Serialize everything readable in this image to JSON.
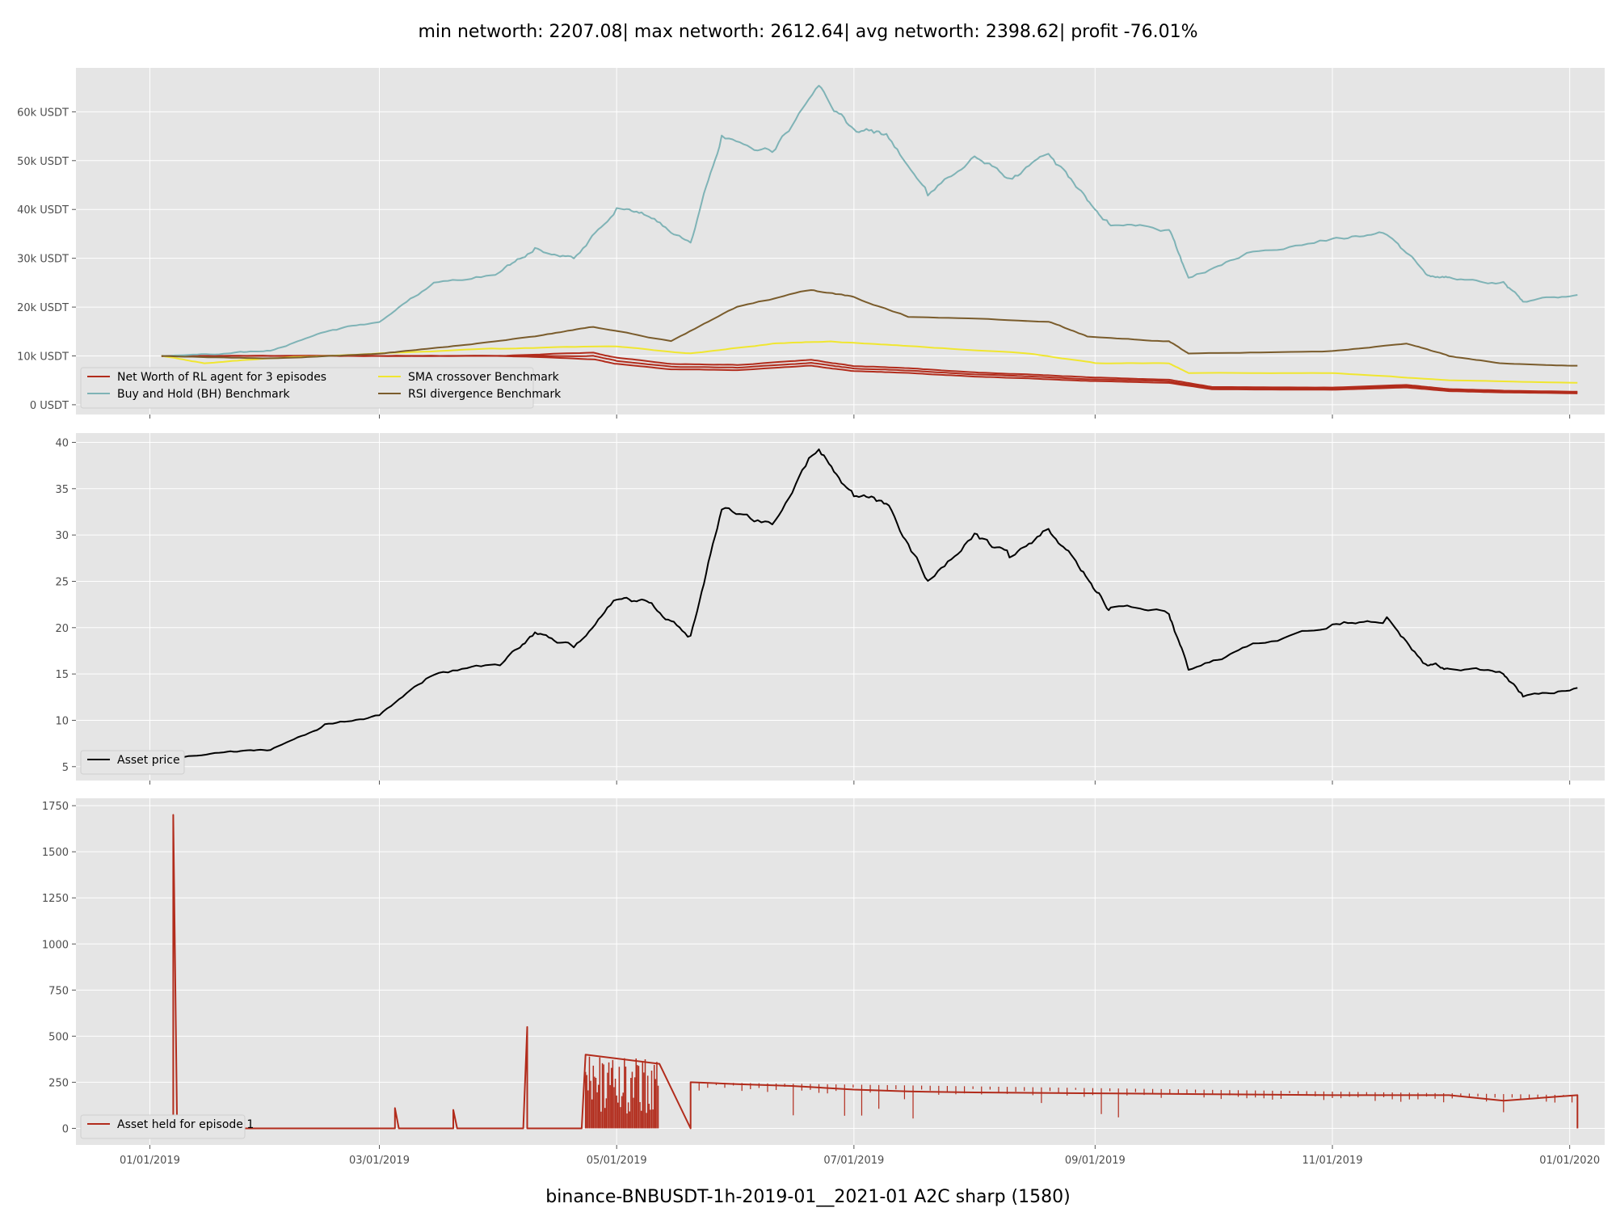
{
  "figure": {
    "title": "min networth: 2207.08| max networth: 2612.64| avg networth: 2398.62| profit -76.01%",
    "footer": "binance-BNBUSDT-1h-2019-01__2021-01 A2C sharp  (1580)"
  },
  "colors": {
    "panel_bg": "#e5e5e5",
    "grid": "#ffffff",
    "net_worth": "#b22c1c",
    "buy_hold": "#7fb3b6",
    "sma": "#f0e630",
    "rsi": "#7a5c2c",
    "asset_price": "#000000",
    "asset_held": "#b22c1c"
  },
  "chart_data": [
    {
      "type": "line",
      "panel": "networth",
      "x_axis": "date",
      "xlim": [
        "2018-12-13",
        "2020-01-10"
      ],
      "xticks": [
        "01/01/2019",
        "03/01/2019",
        "05/01/2019",
        "07/01/2019",
        "09/01/2019",
        "11/01/2019",
        "01/01/2020"
      ],
      "xtick_dates": [
        "2019-01-01",
        "2019-03-01",
        "2019-05-01",
        "2019-07-01",
        "2019-09-01",
        "2019-11-01",
        "2020-01-01"
      ],
      "ylim": [
        -2000,
        69000
      ],
      "yticks": [
        0,
        10000,
        20000,
        30000,
        40000,
        50000,
        60000
      ],
      "ytick_labels": [
        "0 USDT",
        "10k USDT",
        "20k USDT",
        "30k USDT",
        "40k USDT",
        "50k USDT",
        "60k USDT"
      ],
      "legend_position": "lower-left",
      "legend_columns": 2,
      "series": [
        {
          "name": "Net Worth of RL agent for 3 episodes",
          "color_key": "net_worth",
          "x": [
            "2019-01-04",
            "2019-02-01",
            "2019-03-01",
            "2019-04-01",
            "2019-04-25",
            "2019-05-01",
            "2019-05-15",
            "2019-06-01",
            "2019-06-20",
            "2019-07-01",
            "2019-07-15",
            "2019-08-01",
            "2019-08-15",
            "2019-09-01",
            "2019-09-20",
            "2019-10-01",
            "2019-11-01",
            "2019-11-20",
            "2019-12-01",
            "2019-12-15",
            "2020-01-03"
          ],
          "y": [
            10000,
            10000,
            10000,
            10000,
            10000,
            9000,
            7800,
            7600,
            8600,
            7400,
            7000,
            6200,
            5800,
            5200,
            4800,
            3400,
            3300,
            3800,
            3000,
            2700,
            2500
          ]
        },
        {
          "name": "Buy and Hold (BH) Benchmark",
          "color_key": "buy_hold",
          "x": [
            "2019-01-04",
            "2019-01-20",
            "2019-02-01",
            "2019-02-15",
            "2019-03-01",
            "2019-03-15",
            "2019-04-01",
            "2019-04-10",
            "2019-04-20",
            "2019-05-01",
            "2019-05-10",
            "2019-05-20",
            "2019-05-28",
            "2019-06-10",
            "2019-06-22",
            "2019-07-01",
            "2019-07-10",
            "2019-07-20",
            "2019-08-01",
            "2019-08-10",
            "2019-08-20",
            "2019-08-29",
            "2019-09-05",
            "2019-09-20",
            "2019-09-25",
            "2019-10-10",
            "2019-11-01",
            "2019-11-15",
            "2019-11-25",
            "2019-12-01",
            "2019-12-15",
            "2019-12-20",
            "2020-01-03"
          ],
          "y": [
            10000,
            10500,
            11000,
            15000,
            17000,
            25000,
            27000,
            32000,
            30000,
            40000,
            38000,
            33000,
            55000,
            52000,
            65000,
            56000,
            55000,
            43000,
            51000,
            46000,
            51000,
            43000,
            37000,
            36000,
            26000,
            31000,
            34000,
            35000,
            27000,
            26000,
            25000,
            21000,
            22500
          ]
        },
        {
          "name": "SMA crossover Benchmark",
          "color_key": "sma",
          "x": [
            "2019-01-04",
            "2019-01-15",
            "2019-02-01",
            "2019-03-01",
            "2019-04-01",
            "2019-05-01",
            "2019-05-20",
            "2019-06-10",
            "2019-06-25",
            "2019-07-15",
            "2019-08-15",
            "2019-09-01",
            "2019-09-20",
            "2019-09-25",
            "2019-11-01",
            "2019-12-01",
            "2020-01-03"
          ],
          "y": [
            10000,
            8500,
            9500,
            10500,
            11500,
            12000,
            10500,
            12500,
            13000,
            12000,
            10500,
            8500,
            8500,
            6500,
            6500,
            5000,
            4500
          ]
        },
        {
          "name": "RSI divergence Benchmark",
          "color_key": "rsi",
          "x": [
            "2019-01-04",
            "2019-02-01",
            "2019-03-01",
            "2019-03-20",
            "2019-04-10",
            "2019-04-25",
            "2019-05-15",
            "2019-06-01",
            "2019-06-20",
            "2019-07-01",
            "2019-07-15",
            "2019-08-20",
            "2019-08-30",
            "2019-09-20",
            "2019-09-25",
            "2019-11-01",
            "2019-11-20",
            "2019-12-01",
            "2019-12-15",
            "2020-01-03"
          ],
          "y": [
            10000,
            9500,
            10500,
            12000,
            14000,
            16000,
            13000,
            20000,
            23500,
            22000,
            18000,
            17000,
            14000,
            13000,
            10500,
            11000,
            12500,
            10000,
            8500,
            8000
          ]
        }
      ]
    },
    {
      "type": "line",
      "panel": "asset_price",
      "x_axis": "date",
      "xlim": [
        "2018-12-13",
        "2020-01-10"
      ],
      "ylim": [
        3.5,
        41
      ],
      "yticks": [
        5,
        10,
        15,
        20,
        25,
        30,
        35,
        40
      ],
      "legend_position": "lower-left",
      "series": [
        {
          "name": "Asset price",
          "color_key": "asset_price",
          "x": [
            "2019-01-04",
            "2019-01-20",
            "2019-02-01",
            "2019-02-15",
            "2019-03-01",
            "2019-03-15",
            "2019-04-01",
            "2019-04-10",
            "2019-04-20",
            "2019-05-01",
            "2019-05-10",
            "2019-05-20",
            "2019-05-28",
            "2019-06-10",
            "2019-06-22",
            "2019-07-01",
            "2019-07-10",
            "2019-07-20",
            "2019-08-01",
            "2019-08-10",
            "2019-08-20",
            "2019-08-29",
            "2019-09-05",
            "2019-09-20",
            "2019-09-25",
            "2019-10-10",
            "2019-11-01",
            "2019-11-15",
            "2019-11-25",
            "2019-12-01",
            "2019-12-15",
            "2019-12-20",
            "2020-01-03"
          ],
          "y": [
            5.8,
            6.5,
            6.8,
            9.5,
            10.5,
            15,
            16,
            19.5,
            18,
            23,
            22.5,
            19,
            33,
            31,
            39.5,
            34,
            33,
            25,
            30,
            27.5,
            30.5,
            26,
            22,
            21.5,
            15.5,
            18,
            20.5,
            21,
            16,
            15.5,
            15,
            12.5,
            13.5
          ]
        }
      ]
    },
    {
      "type": "line",
      "panel": "asset_held",
      "x_axis": "date",
      "xlim": [
        "2018-12-13",
        "2020-01-10"
      ],
      "ylim": [
        -90,
        1790
      ],
      "yticks": [
        0,
        250,
        500,
        750,
        1000,
        1250,
        1500,
        1750
      ],
      "legend_position": "lower-left",
      "series": [
        {
          "name": "Asset held for episode 1",
          "color_key": "asset_held",
          "x": [
            "2019-01-04",
            "2019-01-07",
            "2019-01-07",
            "2019-01-08",
            "2019-03-05",
            "2019-03-05",
            "2019-03-06",
            "2019-03-20",
            "2019-03-20",
            "2019-03-21",
            "2019-04-07",
            "2019-04-08",
            "2019-04-08",
            "2019-04-09",
            "2019-04-22",
            "2019-04-23",
            "2019-05-12",
            "2019-05-20",
            "2019-05-20",
            "2019-06-01",
            "2019-06-15",
            "2019-07-01",
            "2019-07-15",
            "2019-08-01",
            "2019-09-01",
            "2019-10-01",
            "2019-11-01",
            "2019-12-01",
            "2019-12-15",
            "2020-01-03",
            "2020-01-03"
          ],
          "y": [
            0,
            0,
            1700,
            0,
            0,
            110,
            0,
            0,
            100,
            0,
            0,
            550,
            0,
            0,
            0,
            400,
            350,
            0,
            250,
            240,
            230,
            210,
            200,
            195,
            190,
            185,
            180,
            180,
            150,
            180,
            0
          ]
        }
      ]
    }
  ]
}
